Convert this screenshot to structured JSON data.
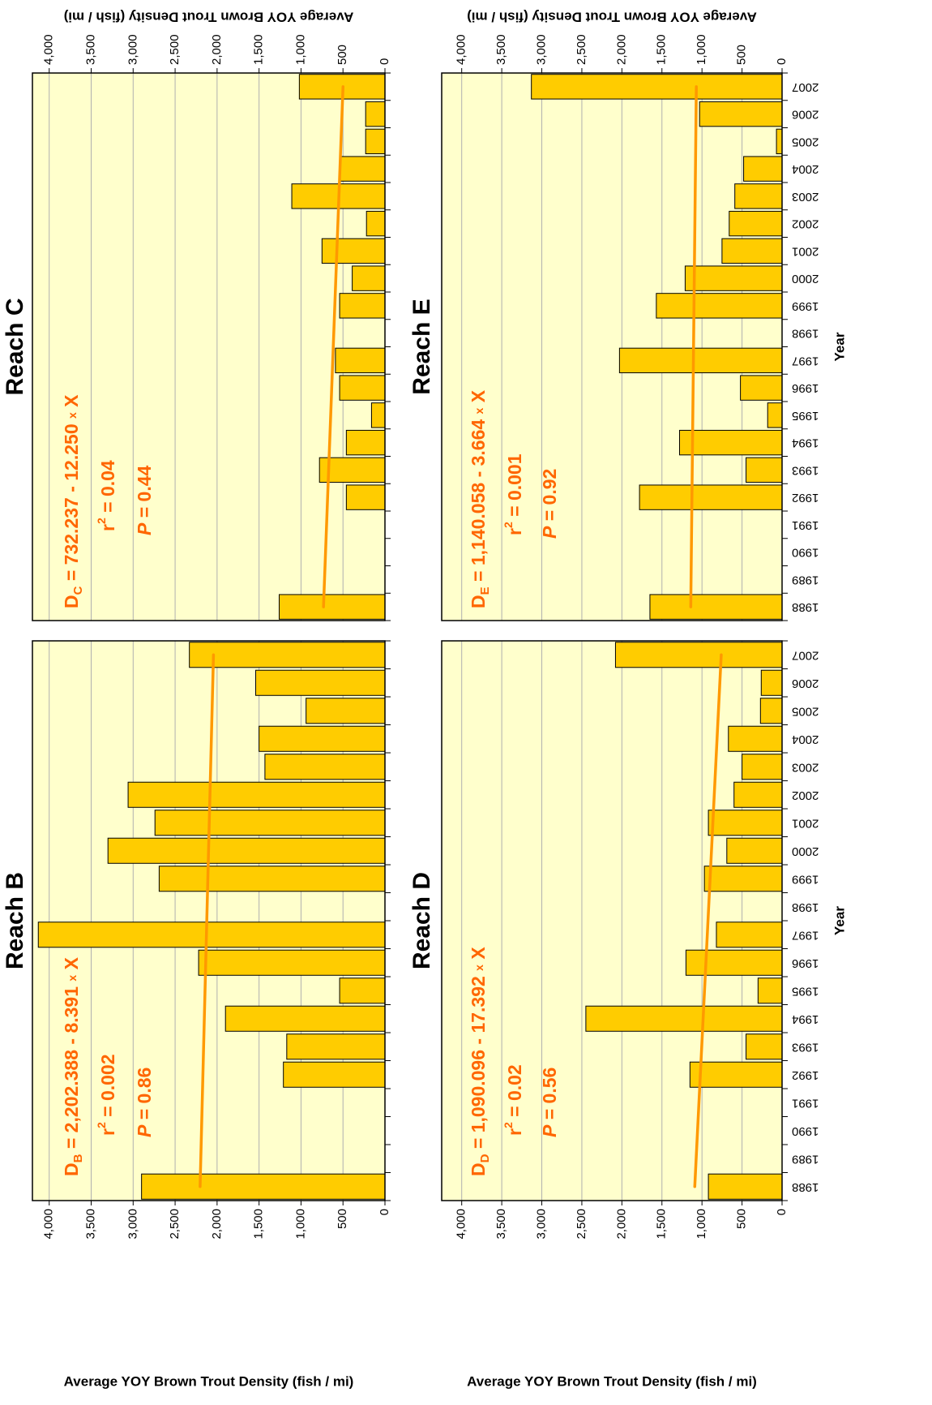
{
  "chart_data": [
    {
      "type": "bar",
      "title": "Reach B",
      "y_label": "Average YOY Brown Trout Density (fish / mi)",
      "axis_side": "left",
      "values": [
        2900,
        null,
        null,
        null,
        1210,
        1170,
        1900,
        540,
        2220,
        4130,
        null,
        2690,
        3300,
        2740,
        3060,
        1430,
        1500,
        940,
        1540,
        2330
      ],
      "color": "#ffcc00",
      "ylim": [
        0,
        4200
      ],
      "yticks": [
        0,
        500,
        {
          "value": 1000,
          "label": "1,000"
        },
        {
          "value": 1500,
          "label": "1,500"
        },
        {
          "value": 2000,
          "label": "2,000"
        },
        {
          "value": 2500,
          "label": "2,500"
        },
        {
          "value": 3000,
          "label": "3,000"
        },
        {
          "value": 3500,
          "label": "3,500"
        },
        {
          "value": 4000,
          "label": "4,000"
        }
      ],
      "grid": true,
      "trend": {
        "intercept": 2202.388,
        "slope": -8.391,
        "color": "#ff9900"
      },
      "equation": {
        "lhs": "D",
        "sub": "B",
        "rhs": " = 2,202.388 - 8.391 ",
        "times": "x",
        "var": " X"
      },
      "r2": {
        "symbol": "r",
        "sup": "2",
        "rhs": " = 0.002"
      },
      "p": {
        "symbol": "P",
        "rhs": "  = 0.86"
      }
    },
    {
      "type": "bar",
      "title": "Reach C",
      "y_label": "Average YOY Brown Trout Density (fish / mi)",
      "axis_side": "right",
      "values": [
        1260,
        null,
        null,
        null,
        460,
        780,
        460,
        160,
        540,
        590,
        null,
        540,
        390,
        750,
        220,
        1110,
        540,
        230,
        230,
        1020
      ],
      "color": "#ffcc00",
      "ylim": [
        0,
        4200
      ],
      "yticks": [
        0,
        500,
        {
          "value": 1000,
          "label": "1,000"
        },
        {
          "value": 1500,
          "label": "1,500"
        },
        {
          "value": 2000,
          "label": "2,000"
        },
        {
          "value": 2500,
          "label": "2,500"
        },
        {
          "value": 3000,
          "label": "3,000"
        },
        {
          "value": 3500,
          "label": "3,500"
        },
        {
          "value": 4000,
          "label": "4,000"
        }
      ],
      "grid": true,
      "trend": {
        "intercept": 732.237,
        "slope": -12.25,
        "color": "#ff9900"
      },
      "equation": {
        "lhs": "D",
        "sub": "C",
        "rhs": " = 732.237 - 12.250 ",
        "times": "x",
        "var": " X"
      },
      "r2": {
        "symbol": "r",
        "sup": "2",
        "rhs": " = 0.04"
      },
      "p": {
        "symbol": "P",
        "rhs": "  = 0.44"
      }
    },
    {
      "type": "bar",
      "title": "Reach D",
      "y_label": "Average YOY Brown Trout Density (fish / mi)",
      "axis_side": "left",
      "x_label": "Year",
      "categories": [
        "1988",
        "1989",
        "1990",
        "1991",
        "1992",
        "1993",
        "1994",
        "1995",
        "1996",
        "1997",
        "1998",
        "1999",
        "2000",
        "2001",
        "2002",
        "2003",
        "2004",
        "2005",
        "2006",
        "2007"
      ],
      "values": [
        920,
        null,
        null,
        null,
        1150,
        450,
        2450,
        300,
        1200,
        820,
        null,
        970,
        690,
        920,
        600,
        500,
        670,
        270,
        260,
        2080
      ],
      "color": "#ffcc00",
      "ylim": [
        0,
        4250
      ],
      "yticks": [
        0,
        500,
        {
          "value": 1000,
          "label": "1,000"
        },
        {
          "value": 1500,
          "label": "1,500"
        },
        {
          "value": 2000,
          "label": "2,000"
        },
        {
          "value": 2500,
          "label": "2,500"
        },
        {
          "value": 3000,
          "label": "3,000"
        },
        {
          "value": 3500,
          "label": "3,500"
        },
        {
          "value": 4000,
          "label": "4,000"
        }
      ],
      "grid": true,
      "trend": {
        "intercept": 1090.096,
        "slope": -17.392,
        "color": "#ff9900"
      },
      "equation": {
        "lhs": "D",
        "sub": "D",
        "rhs": " = 1,090.096 - 17.392 ",
        "times": "x",
        "var": " X"
      },
      "r2": {
        "symbol": "r",
        "sup": "2",
        "rhs": " = 0.02"
      },
      "p": {
        "symbol": "P",
        "rhs": "  = 0.56"
      }
    },
    {
      "type": "bar",
      "title": "Reach E",
      "y_label": "Average YOY Brown Trout Density (fish / mi)",
      "axis_side": "right",
      "x_label": "Year",
      "categories": [
        "1988",
        "1989",
        "1990",
        "1991",
        "1992",
        "1993",
        "1994",
        "1995",
        "1996",
        "1997",
        "1998",
        "1999",
        "2000",
        "2001",
        "2002",
        "2003",
        "2004",
        "2005",
        "2006",
        "2007"
      ],
      "values": [
        1650,
        null,
        null,
        null,
        1780,
        450,
        1280,
        180,
        520,
        2030,
        null,
        1570,
        1210,
        750,
        660,
        590,
        480,
        70,
        1030,
        3130
      ],
      "color": "#ffcc00",
      "ylim": [
        0,
        4250
      ],
      "yticks": [
        0,
        500,
        {
          "value": 1000,
          "label": "1,000"
        },
        {
          "value": 1500,
          "label": "1,500"
        },
        {
          "value": 2000,
          "label": "2,000"
        },
        {
          "value": 2500,
          "label": "2,500"
        },
        {
          "value": 3000,
          "label": "3,000"
        },
        {
          "value": 3500,
          "label": "3,500"
        },
        {
          "value": 4000,
          "label": "4,000"
        }
      ],
      "grid": true,
      "trend": {
        "intercept": 1140.058,
        "slope": -3.664,
        "color": "#ff9900"
      },
      "equation": {
        "lhs": "D",
        "sub": "E",
        "rhs": " = 1,140.058 - 3.664 ",
        "times": "x",
        "var": " X"
      },
      "r2": {
        "symbol": "r",
        "sup": "2",
        "rhs": " = 0.001"
      },
      "p": {
        "symbol": "P",
        "rhs": "  = 0.92"
      }
    }
  ]
}
